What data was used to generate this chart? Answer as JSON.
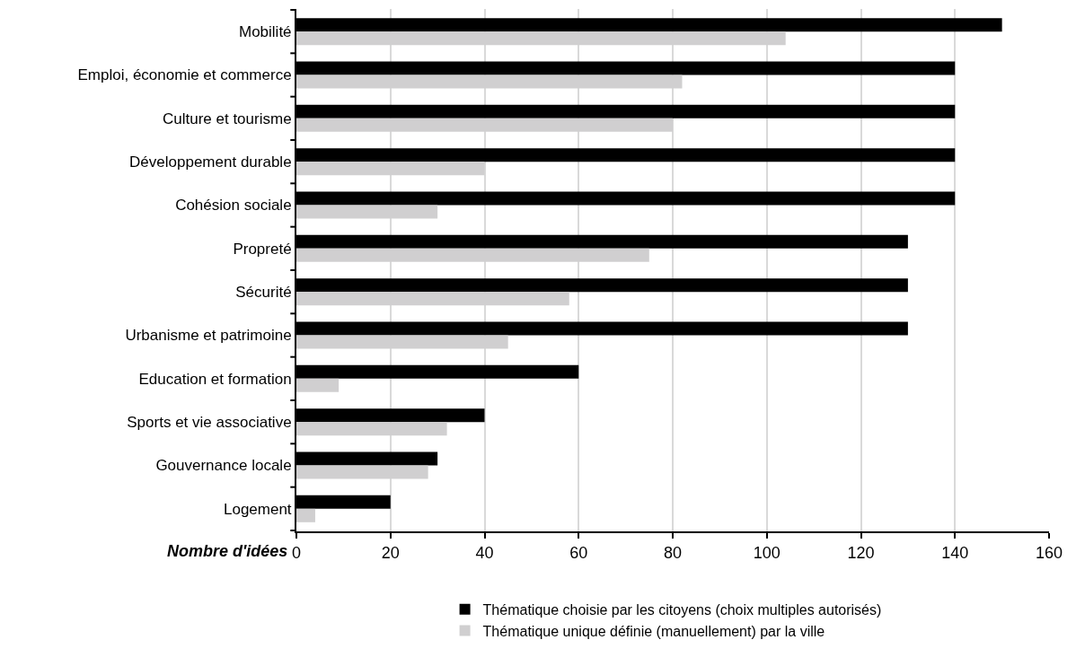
{
  "chart_data": {
    "type": "bar",
    "orientation": "horizontal",
    "xlabel": "Nombre d'idées",
    "categories": [
      "Mobilité",
      "Emploi, économie et commerce",
      "Culture et tourisme",
      "Développement durable",
      "Cohésion sociale",
      "Propreté",
      "Sécurité",
      "Urbanisme et patrimoine",
      "Education et formation",
      "Sports et vie associative",
      "Gouvernance locale",
      "Logement"
    ],
    "series": [
      {
        "name": "Thématique choisie par les citoyens (choix multiples autorisés)",
        "color": "#000000",
        "values": [
          150,
          140,
          140,
          140,
          140,
          130,
          130,
          130,
          60,
          40,
          30,
          20
        ]
      },
      {
        "name": "Thématique unique définie (manuellement) par la ville",
        "color": "#d0cfd0",
        "values": [
          104,
          82,
          80,
          40,
          30,
          75,
          58,
          45,
          9,
          32,
          28,
          4
        ]
      }
    ],
    "xlim": [
      0,
      160
    ],
    "xticks": [
      0,
      20,
      40,
      60,
      80,
      100,
      120,
      140,
      160
    ],
    "grid": "x",
    "legend": "bottom"
  }
}
